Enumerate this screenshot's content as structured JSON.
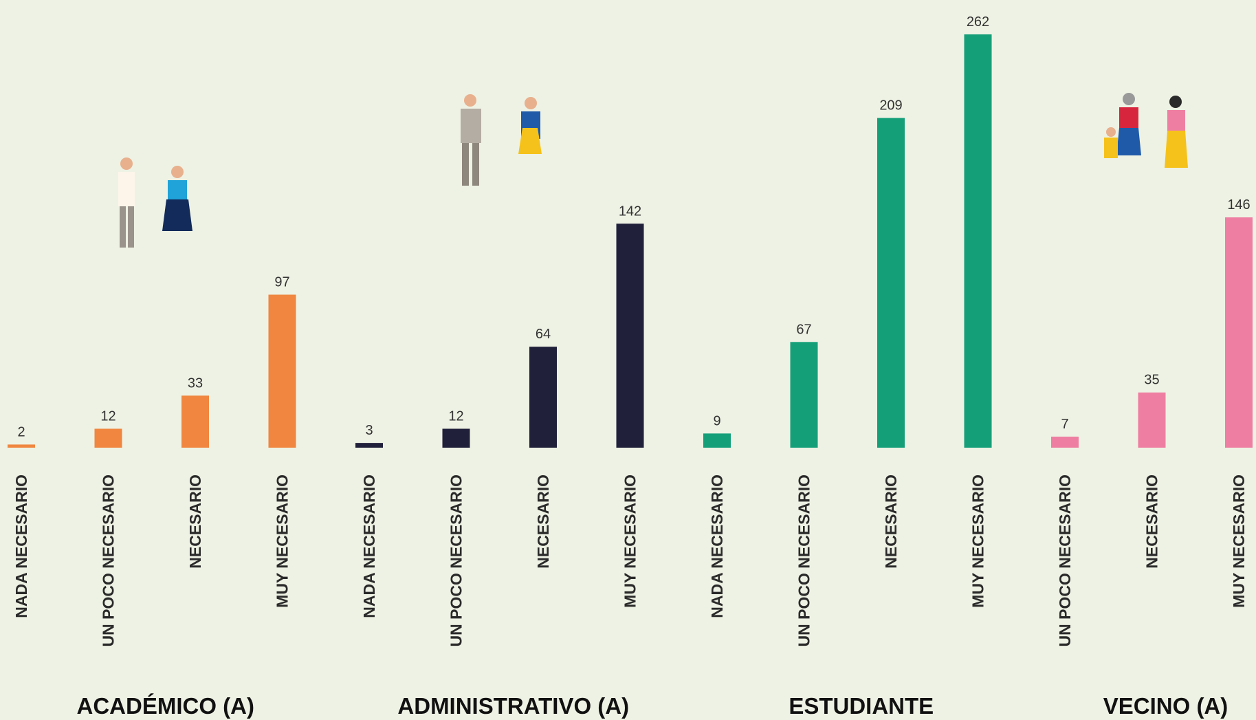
{
  "chart_data": {
    "type": "bar",
    "groups": [
      {
        "name": "ACADÉMICO (A)",
        "color": "#f0863f",
        "categories": [
          "NADA NECESARIO",
          "UN POCO NECESARIO",
          "NECESARIO",
          "MUY NECESARIO"
        ],
        "values": [
          2,
          12,
          33,
          97
        ]
      },
      {
        "name": "ADMINISTRATIVO (A)",
        "color": "#21203b",
        "categories": [
          "NADA NECESARIO",
          "UN POCO NECESARIO",
          "NECESARIO",
          "MUY NECESARIO"
        ],
        "values": [
          3,
          12,
          64,
          142
        ]
      },
      {
        "name": "ESTUDIANTE",
        "color": "#149f79",
        "categories": [
          "NADA NECESARIO",
          "UN POCO NECESARIO",
          "NECESARIO",
          "MUY NECESARIO"
        ],
        "values": [
          9,
          67,
          209,
          262
        ]
      },
      {
        "name": "VECINO (A)",
        "color": "#ee7fa2",
        "categories": [
          "UN POCO NECESARIO",
          "NECESARIO",
          "MUY NECESARIO"
        ],
        "values": [
          7,
          35,
          146
        ]
      }
    ]
  }
}
